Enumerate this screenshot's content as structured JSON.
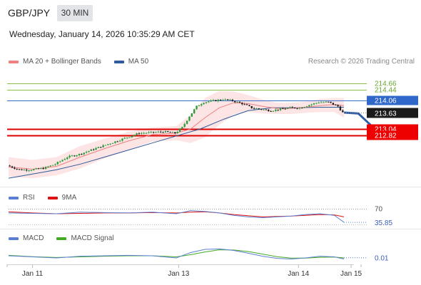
{
  "header": {
    "pair": "GBP/JPY",
    "timeframe": "30 MIN",
    "datetime": "Wednesday, January 14, 2026 10:35:29 AM CET"
  },
  "legend_main": [
    {
      "label": "MA 20 + Bollinger Bands",
      "color": "#f08080"
    },
    {
      "label": "MA 50",
      "color": "#2e5b9a"
    }
  ],
  "copyright": "Research © 2026 Trading Central",
  "legend_rsi": [
    {
      "label": "RSI",
      "color": "#5b7fd0"
    },
    {
      "label": "9MA",
      "color": "#dd1111"
    }
  ],
  "legend_macd": [
    {
      "label": "MACD",
      "color": "#5b7fd0"
    },
    {
      "label": "MACD Signal",
      "color": "#44aa22"
    }
  ],
  "colors": {
    "bull": "#2a9d3a",
    "bear": "#222222",
    "ma20": "#f08080",
    "bollinger_fill": "#fde2e2",
    "ma50": "#2e5b9a",
    "resistance": "#8bc34a",
    "pivot": "#3a6fd0",
    "support": "#dd0000",
    "arrow": "#2f5da6"
  },
  "chart_data": [
    {
      "type": "candlestick",
      "pane": "price",
      "ylim": [
        211.1,
        215.2
      ],
      "x_ticks": [
        "Jan 11",
        "Jan 13",
        "Jan 14",
        "Jan 15"
      ],
      "levels": [
        {
          "value": 214.66,
          "label": "214.66",
          "role": "resistance"
        },
        {
          "value": 214.44,
          "label": "214.44",
          "role": "resistance"
        },
        {
          "value": 214.06,
          "label": "214.06",
          "role": "pivot"
        },
        {
          "value": 213.04,
          "label": "213.04",
          "role": "support"
        },
        {
          "value": 212.82,
          "label": "212.82",
          "role": "support"
        }
      ],
      "last_price": {
        "value": 213.63,
        "label": "213.63"
      },
      "close_trend": [
        [
          0,
          211.75
        ],
        [
          5,
          211.6
        ],
        [
          10,
          211.6
        ],
        [
          15,
          211.65
        ],
        [
          20,
          211.8
        ],
        [
          25,
          212.05
        ],
        [
          30,
          212.15
        ],
        [
          35,
          212.3
        ],
        [
          40,
          212.45
        ],
        [
          45,
          212.6
        ],
        [
          50,
          212.75
        ],
        [
          55,
          212.9
        ],
        [
          60,
          212.92
        ],
        [
          65,
          212.95
        ],
        [
          70,
          212.9
        ],
        [
          73,
          213.1
        ],
        [
          76,
          213.5
        ],
        [
          79,
          213.85
        ],
        [
          82,
          214.0
        ],
        [
          86,
          214.05
        ],
        [
          90,
          214.1
        ],
        [
          94,
          214.05
        ],
        [
          98,
          213.95
        ],
        [
          102,
          213.8
        ],
        [
          106,
          213.75
        ],
        [
          110,
          213.7
        ],
        [
          114,
          213.75
        ],
        [
          118,
          213.8
        ],
        [
          122,
          213.8
        ],
        [
          126,
          213.9
        ],
        [
          130,
          214.0
        ],
        [
          134,
          214.0
        ],
        [
          138,
          213.85
        ],
        [
          140,
          213.63
        ]
      ],
      "ma20": [
        [
          0,
          211.7
        ],
        [
          10,
          211.62
        ],
        [
          20,
          211.72
        ],
        [
          30,
          212.05
        ],
        [
          40,
          212.35
        ],
        [
          50,
          212.62
        ],
        [
          60,
          212.85
        ],
        [
          70,
          212.9
        ],
        [
          76,
          213.05
        ],
        [
          82,
          213.45
        ],
        [
          88,
          213.8
        ],
        [
          94,
          213.98
        ],
        [
          100,
          213.95
        ],
        [
          106,
          213.85
        ],
        [
          112,
          213.78
        ],
        [
          118,
          213.78
        ],
        [
          124,
          213.82
        ],
        [
          130,
          213.88
        ],
        [
          136,
          213.92
        ],
        [
          140,
          213.88
        ]
      ],
      "bollinger_upper": [
        [
          0,
          212.05
        ],
        [
          10,
          211.95
        ],
        [
          20,
          212.05
        ],
        [
          30,
          212.45
        ],
        [
          40,
          212.7
        ],
        [
          50,
          212.95
        ],
        [
          60,
          213.1
        ],
        [
          70,
          213.15
        ],
        [
          76,
          213.55
        ],
        [
          82,
          214.15
        ],
        [
          88,
          214.4
        ],
        [
          94,
          214.38
        ],
        [
          100,
          214.25
        ],
        [
          106,
          214.1
        ],
        [
          112,
          213.98
        ],
        [
          118,
          213.98
        ],
        [
          124,
          214.02
        ],
        [
          130,
          214.12
        ],
        [
          136,
          214.15
        ],
        [
          140,
          214.15
        ]
      ],
      "bollinger_lower": [
        [
          0,
          211.35
        ],
        [
          10,
          211.3
        ],
        [
          20,
          211.4
        ],
        [
          30,
          211.65
        ],
        [
          40,
          212.0
        ],
        [
          50,
          212.3
        ],
        [
          60,
          212.6
        ],
        [
          70,
          212.65
        ],
        [
          76,
          212.55
        ],
        [
          82,
          212.75
        ],
        [
          88,
          213.2
        ],
        [
          94,
          213.55
        ],
        [
          100,
          213.65
        ],
        [
          106,
          213.6
        ],
        [
          112,
          213.58
        ],
        [
          118,
          213.58
        ],
        [
          124,
          213.62
        ],
        [
          130,
          213.65
        ],
        [
          136,
          213.65
        ],
        [
          140,
          213.45
        ]
      ],
      "ma50": [
        [
          0,
          211.3
        ],
        [
          10,
          211.45
        ],
        [
          20,
          211.6
        ],
        [
          30,
          211.8
        ],
        [
          40,
          212.05
        ],
        [
          50,
          212.3
        ],
        [
          60,
          212.55
        ],
        [
          70,
          212.8
        ],
        [
          80,
          213.05
        ],
        [
          90,
          213.4
        ],
        [
          100,
          213.7
        ],
        [
          110,
          213.8
        ],
        [
          120,
          213.8
        ],
        [
          130,
          213.82
        ],
        [
          140,
          213.82
        ]
      ],
      "forecast_arrow": [
        [
          140,
          213.63
        ],
        [
          146,
          213.6
        ],
        [
          153,
          213.04
        ]
      ]
    },
    {
      "type": "line",
      "pane": "RSI",
      "ylim": [
        25,
        80
      ],
      "reference": [
        {
          "value": 70,
          "label": "70"
        }
      ],
      "last_value": {
        "value": 35.85,
        "label": "35.85"
      },
      "series": [
        {
          "name": "RSI",
          "points": [
            [
              0,
              60
            ],
            [
              10,
              59
            ],
            [
              20,
              58
            ],
            [
              30,
              62
            ],
            [
              40,
              61
            ],
            [
              50,
              60
            ],
            [
              60,
              62
            ],
            [
              70,
              58
            ],
            [
              76,
              66
            ],
            [
              82,
              64
            ],
            [
              88,
              60
            ],
            [
              94,
              54
            ],
            [
              100,
              50
            ],
            [
              106,
              48
            ],
            [
              112,
              50
            ],
            [
              118,
              52
            ],
            [
              124,
              56
            ],
            [
              130,
              58
            ],
            [
              136,
              54
            ],
            [
              140,
              36
            ]
          ]
        },
        {
          "name": "9MA",
          "points": [
            [
              0,
              63
            ],
            [
              10,
              60
            ],
            [
              20,
              58
            ],
            [
              30,
              59
            ],
            [
              40,
              60
            ],
            [
              50,
              60
            ],
            [
              60,
              61
            ],
            [
              70,
              60
            ],
            [
              76,
              62
            ],
            [
              82,
              63
            ],
            [
              88,
              60
            ],
            [
              94,
              56
            ],
            [
              100,
              53
            ],
            [
              106,
              50
            ],
            [
              112,
              51
            ],
            [
              118,
              52
            ],
            [
              124,
              54
            ],
            [
              130,
              56
            ],
            [
              136,
              55
            ],
            [
              140,
              50
            ]
          ]
        }
      ]
    },
    {
      "type": "line",
      "pane": "MACD",
      "ylim": [
        -0.2,
        0.6
      ],
      "last_value": {
        "value": 0.01,
        "label": "0.01"
      },
      "series": [
        {
          "name": "MACD",
          "points": [
            [
              0,
              0.1
            ],
            [
              10,
              0.05
            ],
            [
              20,
              0.0
            ],
            [
              30,
              0.08
            ],
            [
              40,
              0.1
            ],
            [
              50,
              0.12
            ],
            [
              60,
              0.1
            ],
            [
              70,
              0.0
            ],
            [
              76,
              0.25
            ],
            [
              82,
              0.4
            ],
            [
              88,
              0.42
            ],
            [
              94,
              0.35
            ],
            [
              100,
              0.22
            ],
            [
              106,
              0.08
            ],
            [
              112,
              -0.02
            ],
            [
              118,
              -0.05
            ],
            [
              124,
              0.0
            ],
            [
              130,
              0.08
            ],
            [
              136,
              0.05
            ],
            [
              140,
              -0.05
            ]
          ]
        },
        {
          "name": "MACD Signal",
          "points": [
            [
              0,
              0.12
            ],
            [
              10,
              0.06
            ],
            [
              20,
              0.02
            ],
            [
              30,
              0.05
            ],
            [
              40,
              0.08
            ],
            [
              50,
              0.1
            ],
            [
              60,
              0.1
            ],
            [
              70,
              0.05
            ],
            [
              76,
              0.15
            ],
            [
              82,
              0.28
            ],
            [
              88,
              0.38
            ],
            [
              94,
              0.37
            ],
            [
              100,
              0.3
            ],
            [
              106,
              0.18
            ],
            [
              112,
              0.06
            ],
            [
              118,
              -0.01
            ],
            [
              124,
              -0.01
            ],
            [
              130,
              0.03
            ],
            [
              136,
              0.04
            ],
            [
              140,
              0.0
            ]
          ]
        }
      ]
    }
  ]
}
